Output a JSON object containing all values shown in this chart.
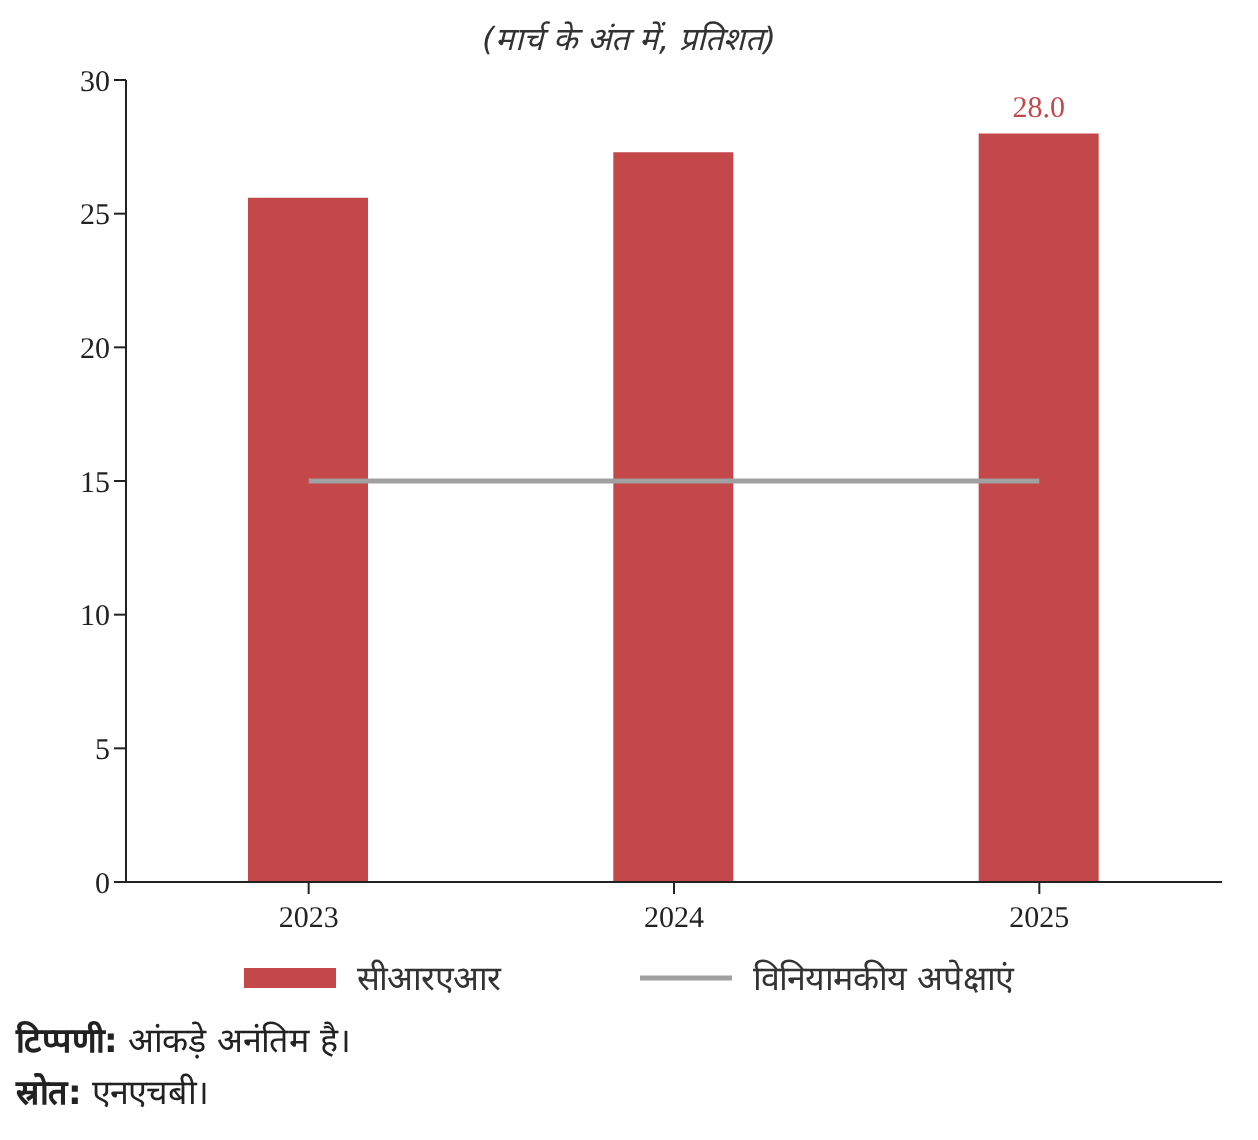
{
  "chart_data": {
    "type": "bar",
    "subtitle": "(मार्च के अंत में, प्रतिशत)",
    "categories": [
      "2023",
      "2024",
      "2025"
    ],
    "series": [
      {
        "name": "सीआरएआर",
        "color": "#c4474a",
        "values": [
          25.6,
          27.3,
          28.0
        ],
        "value_labels": [
          null,
          null,
          "28.0"
        ]
      },
      {
        "name": "विनियामकीय अपेक्षाएं",
        "type": "line",
        "color": "#a0a0a0",
        "values": [
          15,
          15,
          15
        ]
      }
    ],
    "ylim": [
      0,
      30
    ],
    "yticks": [
      0,
      5,
      10,
      15,
      20,
      25,
      30
    ],
    "grid": false,
    "legend": "bottom",
    "marker": "none",
    "annotations": [
      "टिप्पणी: आंकड़े अनंतिम है।",
      "स्रोत: एनएचबी।"
    ]
  }
}
